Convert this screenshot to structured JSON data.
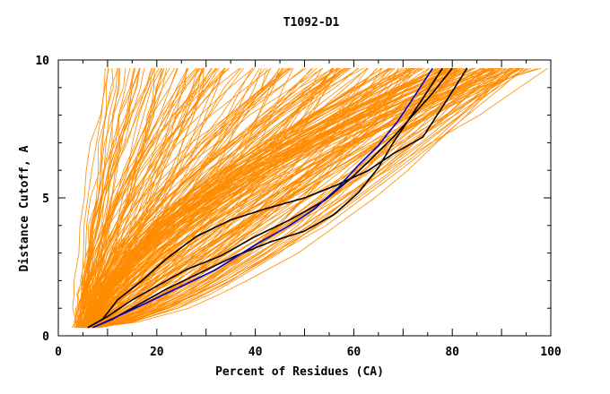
{
  "chart_data": {
    "type": "line",
    "title": "T1092-D1",
    "xlabel": "Percent of Residues (CA)",
    "ylabel": "Distance Cutoff, A",
    "xlim": [
      0,
      100
    ],
    "ylim": [
      0,
      10
    ],
    "x_ticks": [
      0,
      20,
      40,
      60,
      80,
      100
    ],
    "y_ticks": [
      0,
      5,
      10
    ],
    "grid": false,
    "legend": "none",
    "colors": {
      "background_models": "#ff8c00",
      "highlight_black": "#000000",
      "highlight_blue": "#0000cd"
    },
    "y_samples": [
      0.3,
      0.5,
      1.0,
      1.5,
      2.0,
      3.0,
      4.0,
      5.0,
      6.0,
      7.0,
      8.0,
      9.0,
      9.7
    ],
    "background_families": [
      {
        "x_start": [
          3,
          6
        ],
        "x_end": [
          9,
          28
        ],
        "count": 38
      },
      {
        "x_start": [
          4,
          7
        ],
        "x_end": [
          28,
          60
        ],
        "count": 60
      },
      {
        "x_start": [
          5,
          8
        ],
        "x_end": [
          55,
          82
        ],
        "count": 70
      },
      {
        "x_start": [
          5,
          8
        ],
        "x_end": [
          78,
          95
        ],
        "count": 75
      },
      {
        "x_start": [
          6,
          8
        ],
        "x_end": [
          92,
          100
        ],
        "count": 12
      }
    ],
    "series": [
      {
        "color": "highlight_black",
        "points": [
          [
            6,
            0.3
          ],
          [
            9,
            0.6
          ],
          [
            12,
            1.3
          ],
          [
            17,
            2.0
          ],
          [
            22,
            2.8
          ],
          [
            28,
            3.6
          ],
          [
            35,
            4.2
          ],
          [
            42,
            4.6
          ],
          [
            50,
            5.0
          ],
          [
            57,
            5.5
          ],
          [
            63,
            6.0
          ],
          [
            68,
            6.6
          ],
          [
            74,
            7.2
          ],
          [
            78,
            8.3
          ],
          [
            83,
            9.7
          ]
        ]
      },
      {
        "color": "highlight_black",
        "points": [
          [
            6,
            0.3
          ],
          [
            10,
            0.7
          ],
          [
            15,
            1.3
          ],
          [
            20,
            1.8
          ],
          [
            26,
            2.4
          ],
          [
            33,
            2.9
          ],
          [
            40,
            3.6
          ],
          [
            47,
            4.2
          ],
          [
            54,
            4.9
          ],
          [
            60,
            5.8
          ],
          [
            64,
            6.5
          ],
          [
            68,
            7.2
          ],
          [
            72,
            8.0
          ],
          [
            76,
            8.8
          ],
          [
            80,
            9.7
          ]
        ]
      },
      {
        "color": "highlight_black",
        "points": [
          [
            7,
            0.3
          ],
          [
            11,
            0.6
          ],
          [
            16,
            1.1
          ],
          [
            22,
            1.7
          ],
          [
            29,
            2.3
          ],
          [
            36,
            2.9
          ],
          [
            43,
            3.4
          ],
          [
            50,
            3.8
          ],
          [
            56,
            4.4
          ],
          [
            61,
            5.2
          ],
          [
            65,
            6.1
          ],
          [
            68,
            7.0
          ],
          [
            71,
            7.8
          ],
          [
            74,
            8.6
          ],
          [
            78,
            9.7
          ]
        ]
      },
      {
        "color": "highlight_blue",
        "points": [
          [
            7,
            0.3
          ],
          [
            12,
            0.7
          ],
          [
            18,
            1.2
          ],
          [
            25,
            1.8
          ],
          [
            32,
            2.4
          ],
          [
            40,
            3.3
          ],
          [
            47,
            4.0
          ],
          [
            52,
            4.6
          ],
          [
            57,
            5.4
          ],
          [
            61,
            6.2
          ],
          [
            65,
            6.9
          ],
          [
            69,
            7.8
          ],
          [
            72,
            8.6
          ],
          [
            76,
            9.7
          ]
        ]
      }
    ]
  }
}
